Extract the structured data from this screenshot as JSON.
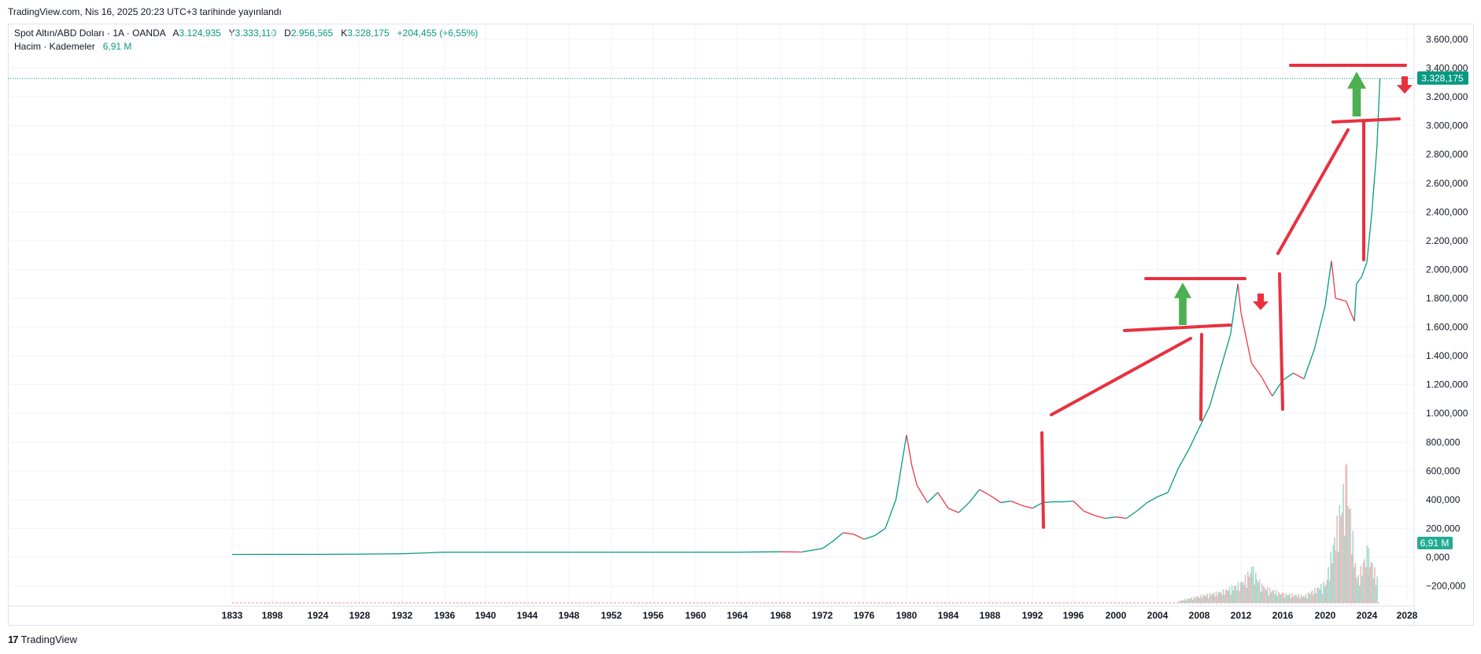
{
  "header": {
    "published": "TradingView.com, Nis 16, 2025 20:23 UTC+3 tarihinde yayınlandı"
  },
  "legend": {
    "symbol": "Spot Altın/ABD Doları · 1A · OANDA",
    "open_label": "A",
    "open": "3.124,935",
    "high_label": "Y",
    "high": "3.333,110",
    "low_label": "D",
    "low": "2.956,565",
    "close_label": "K",
    "close": "3.328,175",
    "change": "+204,455 (+6,55%)",
    "volume_label": "Hacim · Kademeler",
    "volume_value": "6,91 M"
  },
  "footer": {
    "logo": "17",
    "brand": "TradingView"
  },
  "colors": {
    "up": "#089981",
    "down": "#f23645",
    "annotation_red": "#e8313f",
    "annotation_green": "#4caf50",
    "grid": "#f0f3fa",
    "text": "#131722"
  },
  "chart_data": {
    "type": "candlestick",
    "symbol": "Spot Altın/ABD Doları",
    "interval": "1A",
    "x_ticks": [
      "1833",
      "1898",
      "1924",
      "1928",
      "1932",
      "1936",
      "1940",
      "1944",
      "1948",
      "1952",
      "1956",
      "1960",
      "1964",
      "1968",
      "1972",
      "1976",
      "1980",
      "1984",
      "1988",
      "1992",
      "1996",
      "2000",
      "2004",
      "2008",
      "2012",
      "2016",
      "2020",
      "2024",
      "2028"
    ],
    "y_ticks": [
      "3.600,000",
      "3.400,000",
      "3.200,000",
      "3.000,000",
      "2.800,000",
      "2.600,000",
      "2.400,000",
      "2.200,000",
      "2.000,000",
      "1.800,000",
      "1.600,000",
      "1.400,000",
      "1.200,000",
      "1.000,000",
      "800,000",
      "600,000",
      "400,000",
      "200,000",
      "0,000",
      "−200,000"
    ],
    "ylim": [
      -300,
      3700
    ],
    "last_price_label": "3.328,175",
    "last_price": 3328.175,
    "volume_label": "6,91 M",
    "price_series": [
      [
        "1833",
        19
      ],
      [
        "1898",
        20
      ],
      [
        "1924",
        20
      ],
      [
        "1928",
        21
      ],
      [
        "1932",
        24
      ],
      [
        "1936",
        35
      ],
      [
        "1940",
        35
      ],
      [
        "1944",
        35
      ],
      [
        "1948",
        35
      ],
      [
        "1952",
        35
      ],
      [
        "1956",
        35
      ],
      [
        "1960",
        35
      ],
      [
        "1964",
        35
      ],
      [
        "1968",
        38
      ],
      [
        "1970",
        36
      ],
      [
        "1972",
        60
      ],
      [
        "1973",
        110
      ],
      [
        "1974",
        170
      ],
      [
        "1975",
        160
      ],
      [
        "1976",
        125
      ],
      [
        "1977",
        150
      ],
      [
        "1978",
        200
      ],
      [
        "1979",
        400
      ],
      [
        "1980",
        850
      ],
      [
        "1980.5",
        640
      ],
      [
        "1981",
        500
      ],
      [
        "1982",
        380
      ],
      [
        "1983",
        450
      ],
      [
        "1984",
        340
      ],
      [
        "1985",
        310
      ],
      [
        "1986",
        380
      ],
      [
        "1987",
        470
      ],
      [
        "1988",
        430
      ],
      [
        "1989",
        380
      ],
      [
        "1990",
        390
      ],
      [
        "1991",
        360
      ],
      [
        "1992",
        340
      ],
      [
        "1993",
        380
      ],
      [
        "1994",
        385
      ],
      [
        "1995",
        385
      ],
      [
        "1996",
        390
      ],
      [
        "1997",
        320
      ],
      [
        "1998",
        290
      ],
      [
        "1999",
        270
      ],
      [
        "2000",
        280
      ],
      [
        "2001",
        270
      ],
      [
        "2002",
        320
      ],
      [
        "2003",
        380
      ],
      [
        "2004",
        420
      ],
      [
        "2005",
        450
      ],
      [
        "2006",
        620
      ],
      [
        "2007",
        750
      ],
      [
        "2008",
        900
      ],
      [
        "2009",
        1050
      ],
      [
        "2010",
        1300
      ],
      [
        "2011",
        1550
      ],
      [
        "2011.7",
        1900
      ],
      [
        "2012",
        1700
      ],
      [
        "2013",
        1350
      ],
      [
        "2014",
        1250
      ],
      [
        "2015",
        1120
      ],
      [
        "2016",
        1230
      ],
      [
        "2017",
        1280
      ],
      [
        "2018",
        1240
      ],
      [
        "2019",
        1450
      ],
      [
        "2020",
        1750
      ],
      [
        "2020.6",
        2060
      ],
      [
        "2021",
        1800
      ],
      [
        "2022",
        1780
      ],
      [
        "2022.8",
        1640
      ],
      [
        "2023",
        1900
      ],
      [
        "2023.5",
        1950
      ],
      [
        "2024",
        2050
      ],
      [
        "2024.5",
        2400
      ],
      [
        "2025",
        2850
      ],
      [
        "2025.3",
        3328
      ]
    ],
    "volume_series": [
      [
        "2006",
        10
      ],
      [
        "2008",
        40
      ],
      [
        "2010",
        60
      ],
      [
        "2012",
        110
      ],
      [
        "2013",
        190
      ],
      [
        "2014",
        90
      ],
      [
        "2016",
        50
      ],
      [
        "2018",
        40
      ],
      [
        "2020",
        110
      ],
      [
        "2022",
        700
      ],
      [
        "2023",
        120
      ],
      [
        "2024",
        290
      ],
      [
        "2025",
        130
      ]
    ]
  }
}
